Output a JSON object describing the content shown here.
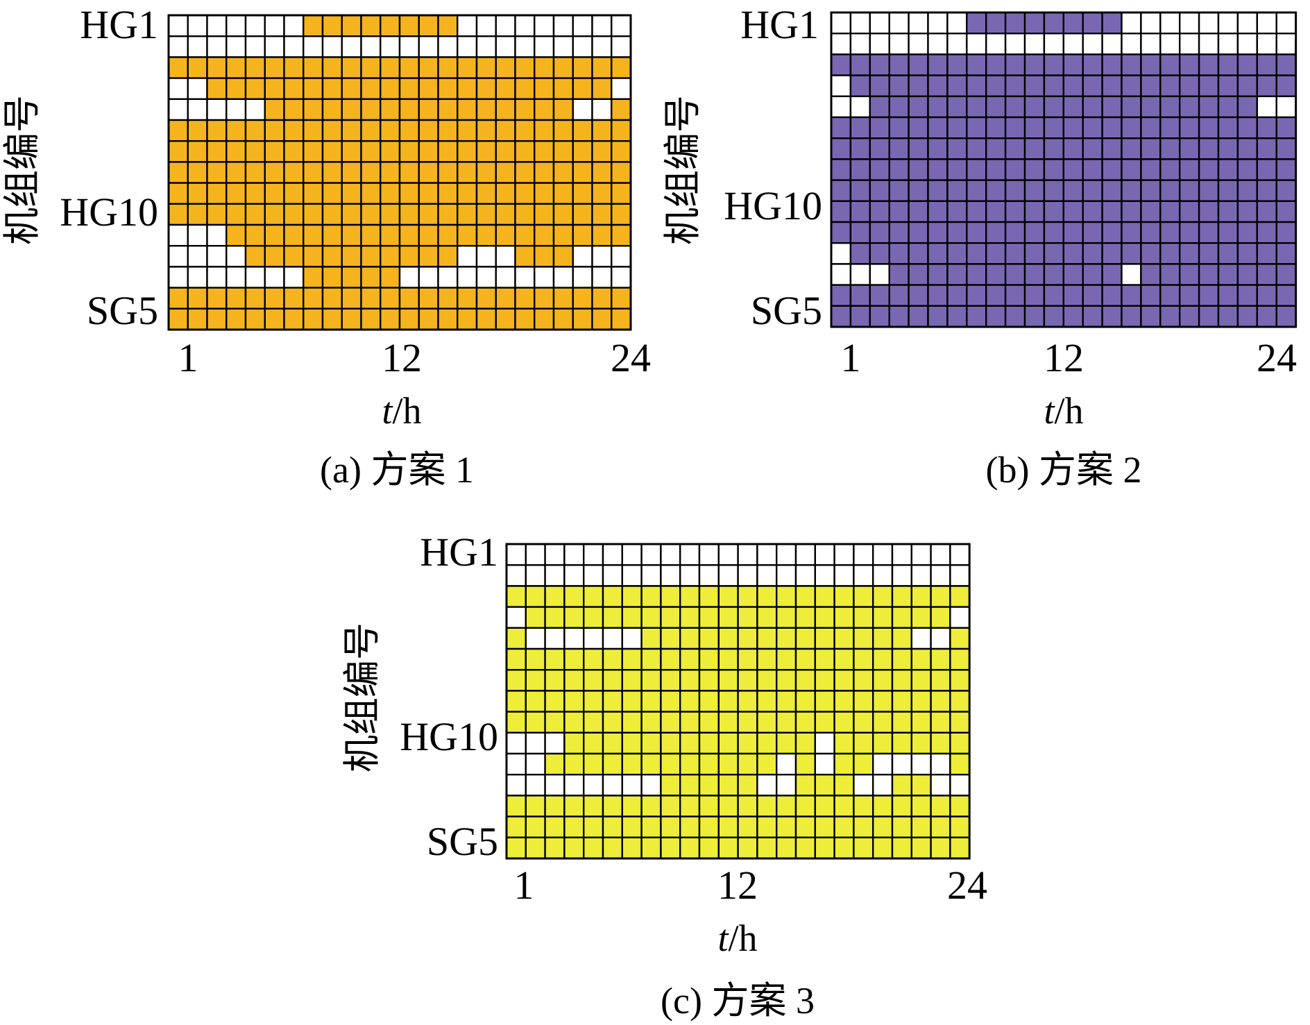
{
  "figure": {
    "y_axis_label": "机组编号",
    "x_axis_label_var": "t",
    "x_axis_label_unit": "/h"
  },
  "chart_data": [
    {
      "type": "heatmap",
      "caption": "(a)  方案 1",
      "on_color": "#f5b41e",
      "off_color": "#ffffff",
      "grid_color": "#000000",
      "xlabel": "t/h",
      "ylabel": "机组编号",
      "x_ticks": [
        "1",
        "12",
        "24"
      ],
      "x": [
        1,
        2,
        3,
        4,
        5,
        6,
        7,
        8,
        9,
        10,
        11,
        12,
        13,
        14,
        15,
        16,
        17,
        18,
        19,
        20,
        21,
        22,
        23,
        24
      ],
      "y_ticks": [
        "HG1",
        "HG10",
        "SG5"
      ],
      "rows": [
        "000000011111111000000000",
        "000000000000000000000000",
        "111111111111111111111111",
        "001111111111111111111110",
        "000001111111111111111001",
        "111111111111111111111111",
        "111111111111111111111111",
        "111111111111111111111111",
        "111111111111111111111111",
        "111111111111111111111111",
        "000111111111111111111111",
        "000011111111111000111000",
        "000000011111000000000000",
        "111111111111111111111111",
        "111111111111111111111111"
      ]
    },
    {
      "type": "heatmap",
      "caption": "(b)  方案 2",
      "on_color": "#7a67b2",
      "off_color": "#ffffff",
      "grid_color": "#000000",
      "xlabel": "t/h",
      "ylabel": "机组编号",
      "x_ticks": [
        "1",
        "12",
        "24"
      ],
      "x": [
        1,
        2,
        3,
        4,
        5,
        6,
        7,
        8,
        9,
        10,
        11,
        12,
        13,
        14,
        15,
        16,
        17,
        18,
        19,
        20,
        21,
        22,
        23,
        24
      ],
      "y_ticks": [
        "HG1",
        "HG10",
        "SG5"
      ],
      "rows": [
        "000000011111111000000000",
        "000000000000000000000000",
        "111111111111111111111111",
        "011111111111111111111111",
        "001111111111111111111100",
        "111111111111111111111111",
        "111111111111111111111111",
        "111111111111111111111111",
        "111111111111111111111111",
        "111111111111111111111111",
        "111111111111111111111111",
        "011111111111111111111111",
        "000111111111111011111111",
        "111111111111111111111111",
        "111111111111111111111111"
      ]
    },
    {
      "type": "heatmap",
      "caption": "(c)  方案 3",
      "on_color": "#eded3a",
      "off_color": "#ffffff",
      "grid_color": "#000000",
      "xlabel": "t/h",
      "ylabel": "机组编号",
      "x_ticks": [
        "1",
        "12",
        "24"
      ],
      "x": [
        1,
        2,
        3,
        4,
        5,
        6,
        7,
        8,
        9,
        10,
        11,
        12,
        13,
        14,
        15,
        16,
        17,
        18,
        19,
        20,
        21,
        22,
        23,
        24
      ],
      "y_ticks": [
        "HG1",
        "HG10",
        "SG5"
      ],
      "rows": [
        "000000000000000000000000",
        "000000000000000000000000",
        "111111111111111111111111",
        "011111111111111111111110",
        "100000011111111111111001",
        "111111111111111111111111",
        "111111111111111111111111",
        "111111111111111111111111",
        "111111111111111111111111",
        "000111111111111101111111",
        "001111111111110101100001",
        "000000001111100111001100",
        "111111111111111111111111",
        "111111111111111111111111",
        "111111111111111111111111"
      ]
    }
  ]
}
